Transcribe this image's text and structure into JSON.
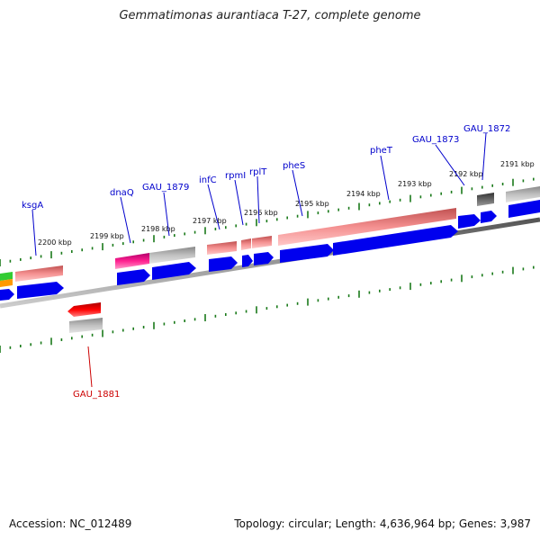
{
  "title": "Gemmatimonas aurantiaca T-27, complete genome",
  "footer": {
    "accession": "Accession: NC_012489",
    "topology": "Topology: circular; Length: 4,636,964 bp; Genes: 3,987"
  },
  "kbp_labels": [
    "2200 kbp",
    "2199 kbp",
    "2198 kbp",
    "2197 kbp",
    "2196 kbp",
    "2195 kbp",
    "2194 kbp",
    "2193 kbp",
    "2192 kbp",
    "2191 kbp"
  ],
  "gene_labels": [
    {
      "name": "ksgA",
      "color": "#0000cc"
    },
    {
      "name": "dnaQ",
      "color": "#0000cc"
    },
    {
      "name": "GAU_1879",
      "color": "#0000cc"
    },
    {
      "name": "infC",
      "color": "#0000cc"
    },
    {
      "name": "rpmI",
      "color": "#0000cc"
    },
    {
      "name": "rplT",
      "color": "#0000cc"
    },
    {
      "name": "pheS",
      "color": "#0000cc"
    },
    {
      "name": "pheT",
      "color": "#0000cc"
    },
    {
      "name": "GAU_1873",
      "color": "#0000cc"
    },
    {
      "name": "GAU_1872",
      "color": "#0000cc"
    },
    {
      "name": "GAU_1881",
      "color": "#cc0000"
    }
  ],
  "colors": {
    "backbone": "#808080",
    "tick": "#1a7a1a",
    "forward_cds": "#0000ee",
    "reverse_cds": "#ee0000",
    "rna_pink": "#f08080",
    "gray_feature": "#b0b0b0",
    "magenta_feature": "#ee1493"
  }
}
